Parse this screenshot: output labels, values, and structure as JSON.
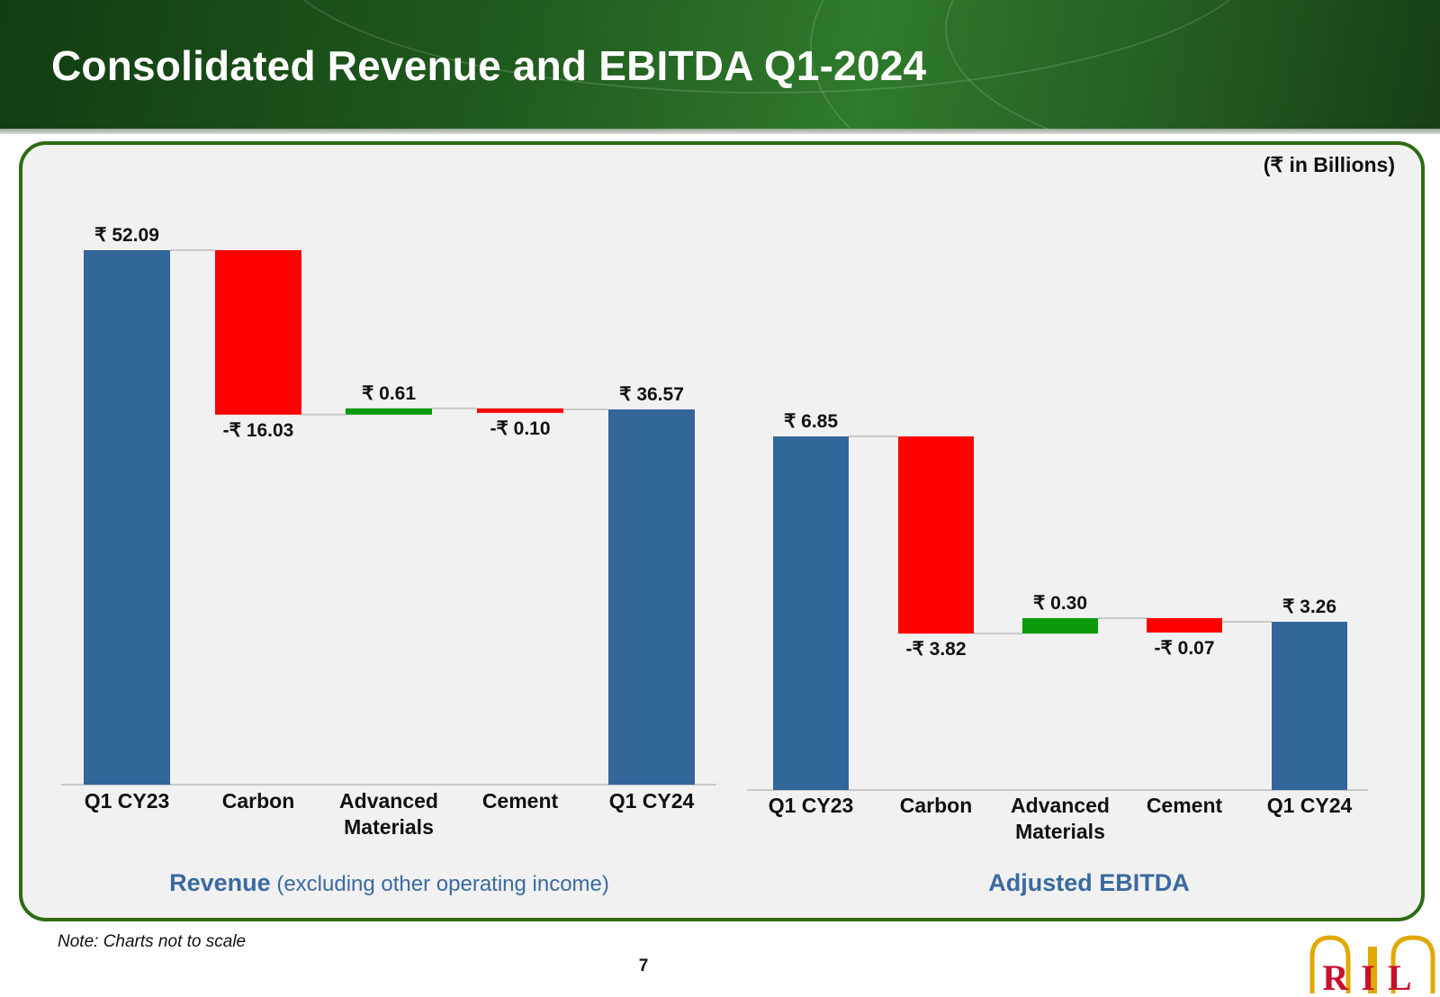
{
  "header": {
    "title": "Consolidated Revenue and EBITDA Q1-2024"
  },
  "units_label": "(₹ in Billions)",
  "captions": {
    "revenue_main": "Revenue",
    "revenue_sub": "(excluding other operating income)",
    "ebitda_main": "Adjusted EBITDA"
  },
  "footer": {
    "note": "Note: Charts not to scale",
    "page_number": "7"
  },
  "logo": {
    "text": "RIL"
  },
  "colors": {
    "total": "#336699",
    "decrease": "#ff0000",
    "increase": "#0a9a0a",
    "panel_border": "#2e6b12",
    "caption": "#3a6aa0"
  },
  "chart_data": [
    {
      "type": "waterfall",
      "title": "Revenue (excluding other operating income)",
      "categories": [
        "Q1 CY23",
        "Carbon",
        "Advanced Materials",
        "Cement",
        "Q1 CY24"
      ],
      "category_lines": [
        [
          "Q1 CY23"
        ],
        [
          "Carbon"
        ],
        [
          "Advanced",
          "Materials"
        ],
        [
          "Cement"
        ],
        [
          "Q1 CY24"
        ]
      ],
      "values": [
        52.09,
        -16.03,
        0.61,
        -0.1,
        36.57
      ],
      "kinds": [
        "total",
        "decrease",
        "increase",
        "decrease",
        "total"
      ],
      "data_labels": [
        "₹ 52.09",
        "-₹ 16.03",
        "₹ 0.61",
        "-₹ 0.10",
        "₹ 36.57"
      ],
      "note": "not to scale"
    },
    {
      "type": "waterfall",
      "title": "Adjusted EBITDA",
      "categories": [
        "Q1 CY23",
        "Carbon",
        "Advanced Materials",
        "Cement",
        "Q1 CY24"
      ],
      "category_lines": [
        [
          "Q1 CY23"
        ],
        [
          "Carbon"
        ],
        [
          "Advanced",
          "Materials"
        ],
        [
          "Cement"
        ],
        [
          "Q1 CY24"
        ]
      ],
      "values": [
        6.85,
        -3.82,
        0.3,
        -0.07,
        3.26
      ],
      "kinds": [
        "total",
        "decrease",
        "increase",
        "decrease",
        "total"
      ],
      "data_labels": [
        "₹ 6.85",
        "-₹ 3.82",
        "₹ 0.30",
        "-₹ 0.07",
        "₹ 3.26"
      ],
      "note": "not to scale"
    }
  ]
}
